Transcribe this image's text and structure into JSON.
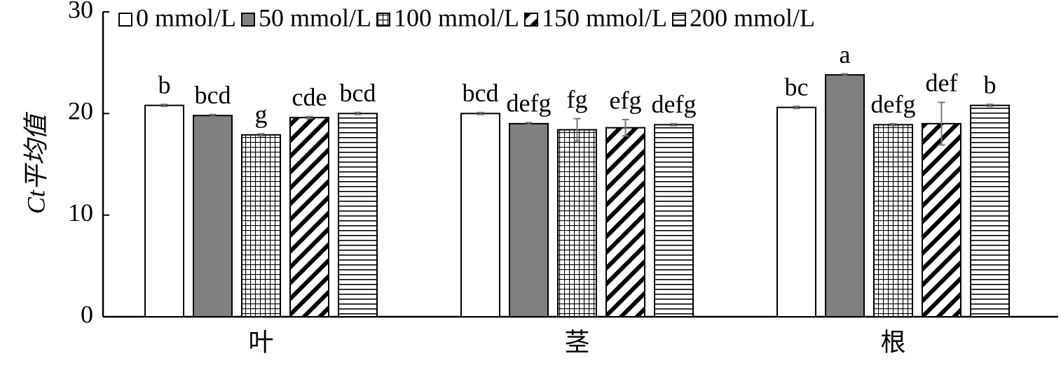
{
  "chart_data": {
    "type": "bar",
    "y_label": "Ct平均值",
    "categories": [
      "叶",
      "茎",
      "根"
    ],
    "ylim": [
      0,
      30
    ],
    "yticks": [
      0,
      10,
      20,
      30
    ],
    "series": [
      {
        "name": "0 mmol/L",
        "color": "#ffffff",
        "values": [
          20.8,
          20.0,
          20.6
        ],
        "errors": [
          0.1,
          0.1,
          0.1
        ],
        "labels": [
          "b",
          "bcd",
          "bc"
        ]
      },
      {
        "name": "50 mmol/L",
        "color": "#808080",
        "values": [
          19.8,
          19.0,
          23.8
        ],
        "errors": [
          0.1,
          0.1,
          0.1
        ],
        "labels": [
          "bcd",
          "defg",
          "a"
        ]
      },
      {
        "name": "100 mmol/L",
        "color": "#ffffff",
        "pattern": "grid",
        "values": [
          17.9,
          18.4,
          18.9
        ],
        "errors": [
          0.1,
          1.1,
          0.1
        ],
        "labels": [
          "g",
          "fg",
          "defg"
        ]
      },
      {
        "name": "150 mmol/L",
        "color": "#ffffff",
        "pattern": "diagonal",
        "values": [
          19.6,
          18.6,
          19.0
        ],
        "errors": [
          0.1,
          0.8,
          2.1
        ],
        "labels": [
          "cde",
          "efg",
          "def"
        ]
      },
      {
        "name": "200 mmol/L",
        "color": "#ffffff",
        "pattern": "horizontal",
        "values": [
          20.0,
          18.9,
          20.8
        ],
        "errors": [
          0.1,
          0.1,
          0.1
        ],
        "labels": [
          "bcd",
          "defg",
          "b"
        ]
      }
    ]
  }
}
